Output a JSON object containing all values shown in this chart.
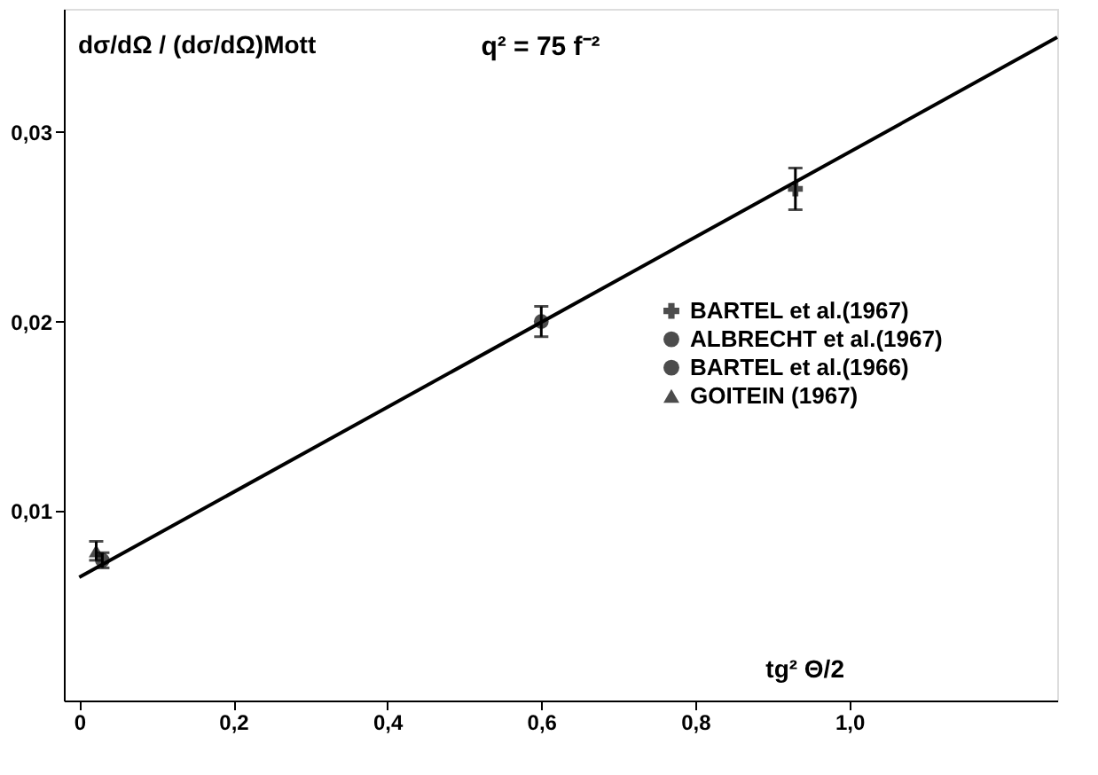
{
  "chart_data": {
    "type": "scatter",
    "ylabel": "dσ/dΩ / (dσ/dΩ)Mott",
    "xlabel": "tg² Θ/2",
    "annotations": [
      "q² = 75 f⁻²"
    ],
    "xlim": [
      -0.02,
      1.27
    ],
    "ylim": [
      0,
      0.0365
    ],
    "xticks": [
      0,
      {
        "value": 0.2,
        "label": "0,2"
      },
      {
        "value": 0.4,
        "label": "0,4"
      },
      {
        "value": 0.6,
        "label": "0,6"
      },
      {
        "value": 0.8,
        "label": "0,8"
      },
      {
        "value": 1.0,
        "label": "1,0"
      }
    ],
    "yticks": [
      {
        "value": 0.01,
        "label": "0,01"
      },
      {
        "value": 0.02,
        "label": "0,02"
      },
      {
        "value": 0.03,
        "label": "0,03"
      }
    ],
    "grid": false,
    "legend": "right",
    "series": [
      {
        "name": "BARTEL et al.(1967)",
        "marker": "cross",
        "color": "#000000",
        "x": [
          0.93
        ],
        "values": [
          0.027
        ],
        "errors": [
          0.0011
        ]
      },
      {
        "name": "ALBRECHT et al.(1967)",
        "marker": "circle",
        "color": "#000000",
        "x": [
          0.6
        ],
        "values": [
          0.02
        ],
        "errors": [
          0.0008
        ]
      },
      {
        "name": "BARTEL et al.(1966)",
        "marker": "circle",
        "color": "#000000",
        "x": [
          0.03
        ],
        "values": [
          0.0074
        ],
        "errors": [
          0.0004
        ]
      },
      {
        "name": "GOITEIN (1967)",
        "marker": "triangle",
        "color": "#000000",
        "x": [
          0.022
        ],
        "values": [
          0.0079
        ],
        "errors": [
          0.0005
        ]
      },
      {
        "type": "line",
        "color": "#000000",
        "x": [
          0,
          1.27
        ],
        "values": [
          0.0065,
          0.035
        ]
      }
    ]
  }
}
